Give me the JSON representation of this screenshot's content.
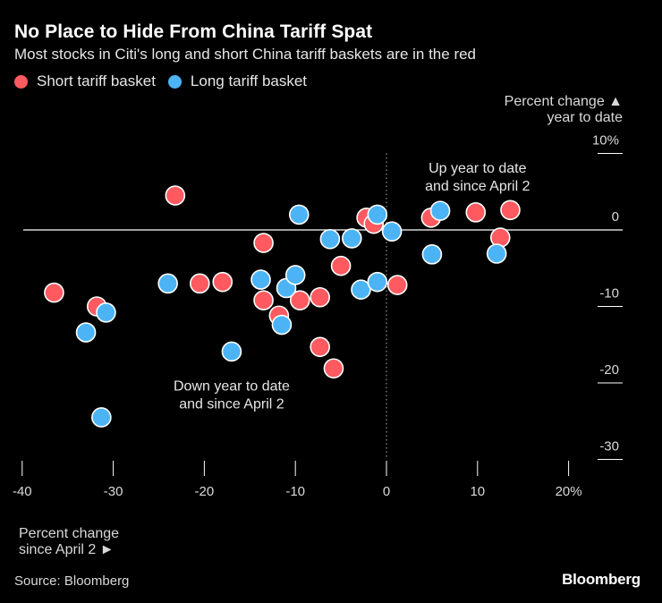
{
  "header": {
    "title": "No Place to Hide From China Tariff Spat",
    "subtitle": "Most stocks in Citi's long and short China tariff baskets are in the red"
  },
  "legend": {
    "short_label": "Short tariff basket",
    "long_label": "Long tariff basket"
  },
  "colors": {
    "short": "#ff5a60",
    "long": "#4cb4f5",
    "background": "#000000",
    "axis": "#ffffff",
    "marker_edge": "#ffffff"
  },
  "axis_captions": {
    "y_line1": "Percent change ▲",
    "y_line2": "year to date",
    "x_line1": "Percent change",
    "x_line2": "since April 2 ►"
  },
  "footer": {
    "source": "Source: Bloomberg",
    "brand": "Bloomberg"
  },
  "chart_data": {
    "type": "scatter",
    "title": "No Place to Hide From China Tariff Spat",
    "subtitle": "Most stocks in Citi's long and short China tariff baskets are in the red",
    "xlabel": "Percent change since April 2",
    "ylabel": "Percent change year to date",
    "xlim": [
      -41,
      26
    ],
    "ylim": [
      -31,
      11.5
    ],
    "xticks": [
      -40,
      -30,
      -20,
      -10,
      0,
      10,
      20
    ],
    "xtick_labels": [
      "-40",
      "-30",
      "-20",
      "-10",
      "0",
      "10",
      "20%"
    ],
    "yticks": [
      10,
      0,
      -10,
      -20,
      -30
    ],
    "ytick_labels": [
      "10%",
      "0",
      "-10",
      "-20",
      "-30"
    ],
    "annotations": [
      {
        "id": "up",
        "lines": [
          "Up year to date",
          "and since April 2"
        ],
        "x": 10,
        "y": 7.5
      },
      {
        "id": "down",
        "lines": [
          "Down year to date",
          "and since April 2"
        ],
        "x": -17,
        "y": -21
      }
    ],
    "series": [
      {
        "name": "Short tariff basket",
        "color": "#ff5a60",
        "points": [
          {
            "x": -36.5,
            "y": -8.2
          },
          {
            "x": -31.8,
            "y": -10.0
          },
          {
            "x": -23.2,
            "y": 4.5
          },
          {
            "x": -20.5,
            "y": -7.0
          },
          {
            "x": -18.0,
            "y": -6.8
          },
          {
            "x": -13.5,
            "y": -1.7
          },
          {
            "x": -13.5,
            "y": -9.2
          },
          {
            "x": -11.8,
            "y": -11.2
          },
          {
            "x": -9.5,
            "y": -9.2
          },
          {
            "x": -7.3,
            "y": -8.8
          },
          {
            "x": -7.3,
            "y": -15.3
          },
          {
            "x": -5.0,
            "y": -4.7
          },
          {
            "x": -5.8,
            "y": -18.1
          },
          {
            "x": -2.2,
            "y": 1.6
          },
          {
            "x": -1.4,
            "y": 0.8
          },
          {
            "x": 1.2,
            "y": -7.2
          },
          {
            "x": 4.9,
            "y": 1.6
          },
          {
            "x": 9.8,
            "y": 2.3
          },
          {
            "x": 12.5,
            "y": -1.0
          },
          {
            "x": 13.6,
            "y": 2.6
          }
        ]
      },
      {
        "name": "Long tariff basket",
        "color": "#4cb4f5",
        "points": [
          {
            "x": -33.0,
            "y": -13.4
          },
          {
            "x": -30.8,
            "y": -10.8
          },
          {
            "x": -31.3,
            "y": -24.5
          },
          {
            "x": -24.0,
            "y": -7.0
          },
          {
            "x": -17.0,
            "y": -15.9
          },
          {
            "x": -13.8,
            "y": -6.5
          },
          {
            "x": -11.5,
            "y": -12.4
          },
          {
            "x": -11.0,
            "y": -7.6
          },
          {
            "x": -10.0,
            "y": -5.9
          },
          {
            "x": -9.6,
            "y": 2.0
          },
          {
            "x": -6.2,
            "y": -1.2
          },
          {
            "x": -3.8,
            "y": -1.1
          },
          {
            "x": -2.8,
            "y": -7.8
          },
          {
            "x": -1.0,
            "y": 2.0
          },
          {
            "x": -1.0,
            "y": -6.8
          },
          {
            "x": 0.6,
            "y": -0.2
          },
          {
            "x": 5.0,
            "y": -3.2
          },
          {
            "x": 5.9,
            "y": 2.5
          },
          {
            "x": 12.1,
            "y": -3.1
          }
        ]
      }
    ]
  }
}
